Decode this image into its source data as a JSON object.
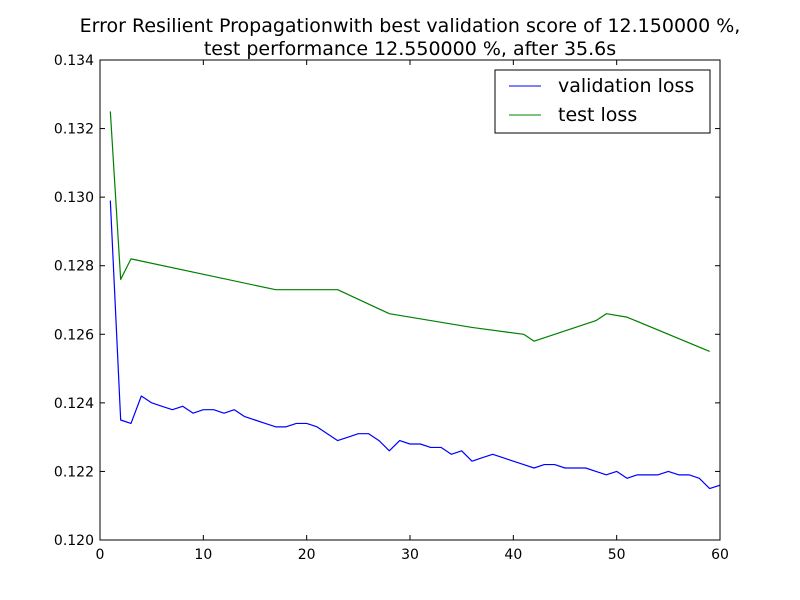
{
  "chart_data": {
    "type": "line",
    "title_lines": [
      "Error Resilient Propagationwith best validation score of 12.150000 %,",
      "test performance 12.550000 %, after 35.6s"
    ],
    "xlabel": "",
    "ylabel": "",
    "xlim": [
      0,
      60
    ],
    "ylim": [
      0.12,
      0.134
    ],
    "x_ticks": [
      0,
      10,
      20,
      30,
      40,
      50,
      60
    ],
    "x_tick_labels": [
      "0",
      "10",
      "20",
      "30",
      "40",
      "50",
      "60"
    ],
    "y_ticks": [
      0.12,
      0.122,
      0.124,
      0.126,
      0.128,
      0.13,
      0.132,
      0.134
    ],
    "y_tick_labels": [
      "0.120",
      "0.122",
      "0.124",
      "0.126",
      "0.128",
      "0.130",
      "0.132",
      "0.134"
    ],
    "grid": false,
    "legend_position": "top-right",
    "series": [
      {
        "name": "validation loss",
        "color": "#0000ff",
        "x": [
          1,
          2,
          3,
          4,
          5,
          6,
          7,
          8,
          9,
          10,
          11,
          12,
          13,
          14,
          15,
          16,
          17,
          18,
          19,
          20,
          21,
          22,
          23,
          24,
          25,
          26,
          27,
          28,
          29,
          30,
          31,
          32,
          33,
          34,
          35,
          36,
          37,
          38,
          39,
          40,
          41,
          42,
          43,
          44,
          45,
          46,
          47,
          48,
          49,
          50,
          51,
          52,
          53,
          54,
          55,
          56,
          57,
          58,
          59,
          60
        ],
        "y": [
          0.1299,
          0.1235,
          0.1234,
          0.1242,
          0.124,
          0.1239,
          0.1238,
          0.1239,
          0.1237,
          0.1238,
          0.1238,
          0.1237,
          0.1238,
          0.1236,
          0.1235,
          0.1234,
          0.1233,
          0.1233,
          0.1234,
          0.1234,
          0.1233,
          0.1231,
          0.1229,
          0.123,
          0.1231,
          0.1231,
          0.1229,
          0.1226,
          0.1229,
          0.1228,
          0.1228,
          0.1227,
          0.1227,
          0.1225,
          0.1226,
          0.1223,
          0.1224,
          0.1225,
          0.1224,
          0.1223,
          0.1222,
          0.1221,
          0.1222,
          0.1222,
          0.1221,
          0.1221,
          0.1221,
          0.122,
          0.1219,
          0.122,
          0.1218,
          0.1219,
          0.1219,
          0.1219,
          0.122,
          0.1219,
          0.1219,
          0.1218,
          0.1215,
          0.1216
        ]
      },
      {
        "name": "test loss",
        "color": "#008000",
        "x": [
          1,
          2,
          3,
          17,
          23,
          28,
          36,
          41,
          42,
          48,
          49,
          51,
          59
        ],
        "y": [
          0.1325,
          0.1276,
          0.1282,
          0.1273,
          0.1273,
          0.1266,
          0.1262,
          0.126,
          0.1258,
          0.1264,
          0.1266,
          0.1265,
          0.1255
        ]
      }
    ]
  }
}
